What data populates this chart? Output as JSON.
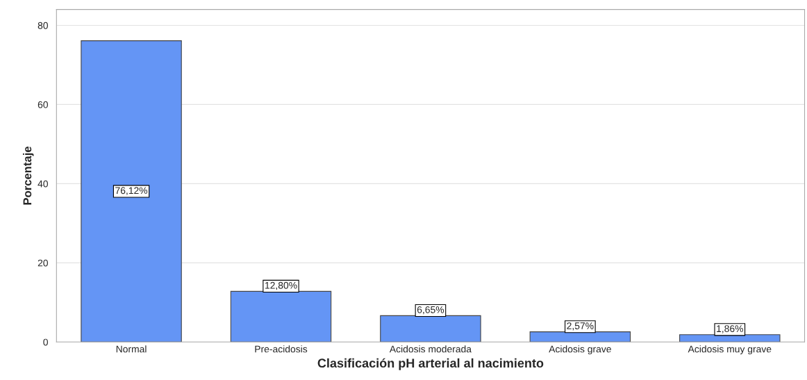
{
  "chart_data": {
    "type": "bar",
    "xlabel": "Clasificación pH arterial al nacimiento",
    "ylabel": "Porcentaje",
    "categories": [
      "Normal",
      "Pre-acidosis",
      "Acidosis moderada",
      "Acidosis grave",
      "Acidosis muy grave"
    ],
    "values": [
      76.12,
      12.8,
      6.65,
      2.57,
      1.86
    ],
    "value_labels": [
      "76,12%",
      "12,80%",
      "6,65%",
      "2,57%",
      "1,86%"
    ],
    "color": "#6495f5",
    "ylim": [
      0,
      84
    ],
    "yticks": [
      0,
      20,
      40,
      60,
      80
    ],
    "grid": "y"
  }
}
